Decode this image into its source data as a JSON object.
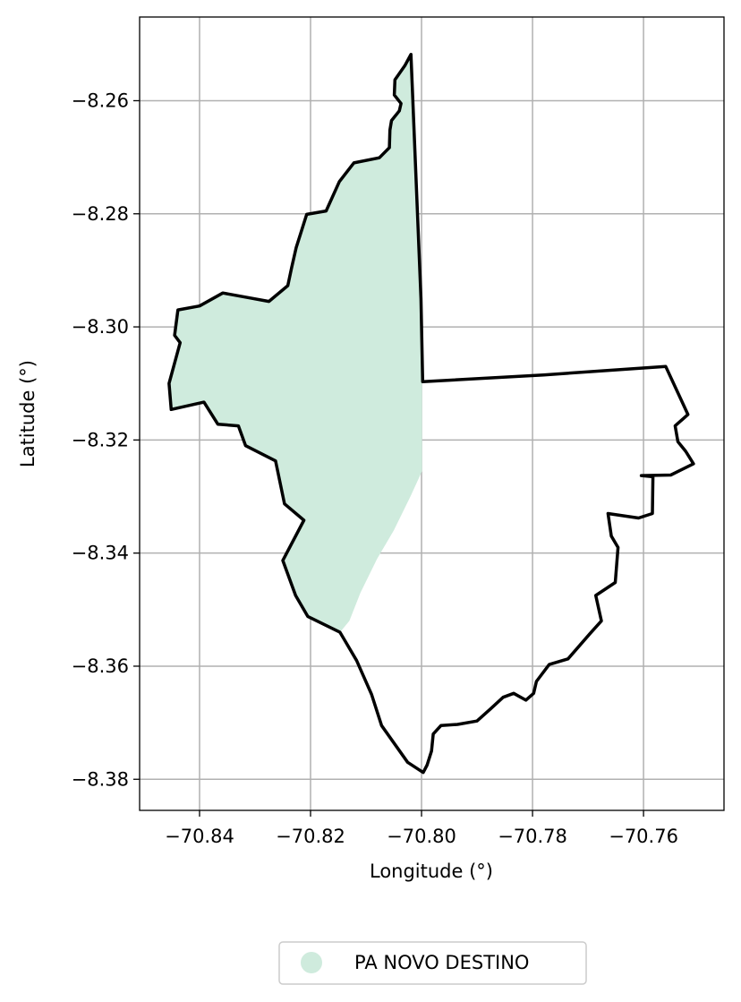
{
  "chart_data": {
    "type": "map",
    "xlabel": "Longitude (°)",
    "ylabel": "Latitude (°)",
    "xlim": [
      -70.8508,
      -70.7455
    ],
    "ylim": [
      -8.3855,
      -8.2452
    ],
    "grid": true,
    "x_ticks": [
      {
        "value": -70.84,
        "label": "−70.84"
      },
      {
        "value": -70.82,
        "label": "−70.82"
      },
      {
        "value": -70.8,
        "label": "−70.80"
      },
      {
        "value": -70.78,
        "label": "−70.78"
      },
      {
        "value": -70.76,
        "label": "−70.76"
      }
    ],
    "y_ticks": [
      {
        "value": -8.26,
        "label": "−8.26"
      },
      {
        "value": -8.28,
        "label": "−8.28"
      },
      {
        "value": -8.3,
        "label": "−8.30"
      },
      {
        "value": -8.32,
        "label": "−8.32"
      },
      {
        "value": -8.34,
        "label": "−8.34"
      },
      {
        "value": -8.36,
        "label": "−8.36"
      },
      {
        "value": -8.38,
        "label": "−8.38"
      }
    ],
    "legend": {
      "placement": "bottom-center",
      "items": [
        {
          "label": "PA NOVO DESTINO",
          "color": "#cfebdd"
        }
      ]
    },
    "fill_color": "#cfebdd",
    "outline_color": "#000000",
    "boundary": [
      [
        -70.8019,
        -8.2518
      ],
      [
        -70.803,
        -8.2538
      ],
      [
        -70.8048,
        -8.2563
      ],
      [
        -70.8049,
        -8.259
      ],
      [
        -70.8037,
        -8.2605
      ],
      [
        -70.804,
        -8.2618
      ],
      [
        -70.8054,
        -8.2635
      ],
      [
        -70.8057,
        -8.2652
      ],
      [
        -70.8058,
        -8.2683
      ],
      [
        -70.8076,
        -8.2701
      ],
      [
        -70.8122,
        -8.271
      ],
      [
        -70.8148,
        -8.2743
      ],
      [
        -70.8172,
        -8.2795
      ],
      [
        -70.8207,
        -8.2801
      ],
      [
        -70.8226,
        -8.286
      ],
      [
        -70.8234,
        -8.2895
      ],
      [
        -70.8241,
        -8.2927
      ],
      [
        -70.8275,
        -8.2955
      ],
      [
        -70.8314,
        -8.2948
      ],
      [
        -70.8358,
        -8.294
      ],
      [
        -70.84,
        -8.2963
      ],
      [
        -70.8439,
        -8.297
      ],
      [
        -70.8445,
        -8.3015
      ],
      [
        -70.8435,
        -8.3028
      ],
      [
        -70.8455,
        -8.31
      ],
      [
        -70.8451,
        -8.3146
      ],
      [
        -70.8392,
        -8.3133
      ],
      [
        -70.8367,
        -8.3172
      ],
      [
        -70.833,
        -8.3175
      ],
      [
        -70.8317,
        -8.321
      ],
      [
        -70.8263,
        -8.3237
      ],
      [
        -70.8247,
        -8.3313
      ],
      [
        -70.8212,
        -8.3342
      ],
      [
        -70.825,
        -8.3413
      ],
      [
        -70.8227,
        -8.3475
      ],
      [
        -70.8205,
        -8.3512
      ],
      [
        -70.8147,
        -8.354
      ],
      [
        -70.8117,
        -8.359
      ],
      [
        -70.809,
        -8.365
      ],
      [
        -70.8072,
        -8.3705
      ],
      [
        -70.8025,
        -8.377
      ],
      [
        -70.7997,
        -8.3788
      ],
      [
        -70.799,
        -8.3775
      ],
      [
        -70.7982,
        -8.375
      ],
      [
        -70.7979,
        -8.372
      ],
      [
        -70.7965,
        -8.3705
      ],
      [
        -70.7935,
        -8.3703
      ],
      [
        -70.79,
        -8.3697
      ],
      [
        -70.7875,
        -8.3675
      ],
      [
        -70.7853,
        -8.3655
      ],
      [
        -70.7834,
        -8.3648
      ],
      [
        -70.7812,
        -8.366
      ],
      [
        -70.7798,
        -8.3648
      ],
      [
        -70.7793,
        -8.3627
      ],
      [
        -70.777,
        -8.3597
      ],
      [
        -70.7736,
        -8.3587
      ],
      [
        -70.7696,
        -8.3542
      ],
      [
        -70.7676,
        -8.352
      ],
      [
        -70.7686,
        -8.3475
      ],
      [
        -70.7651,
        -8.3452
      ],
      [
        -70.7646,
        -8.339
      ],
      [
        -70.7658,
        -8.337
      ],
      [
        -70.7664,
        -8.333
      ],
      [
        -70.7609,
        -8.3338
      ],
      [
        -70.7584,
        -8.333
      ],
      [
        -70.7583,
        -8.3265
      ],
      [
        -70.7604,
        -8.3263
      ],
      [
        -70.7551,
        -8.3262
      ],
      [
        -70.751,
        -8.3242
      ],
      [
        -70.7524,
        -8.322
      ],
      [
        -70.7538,
        -8.3203
      ],
      [
        -70.7543,
        -8.3175
      ],
      [
        -70.752,
        -8.3155
      ],
      [
        -70.756,
        -8.307
      ],
      [
        -70.778,
        -8.3085
      ],
      [
        -70.7998,
        -8.3097
      ],
      [
        -70.8001,
        -8.295
      ],
      [
        -70.8019,
        -8.2518
      ]
    ],
    "highlight": [
      [
        -70.8019,
        -8.2518
      ],
      [
        -70.803,
        -8.2538
      ],
      [
        -70.8048,
        -8.2563
      ],
      [
        -70.8049,
        -8.259
      ],
      [
        -70.8037,
        -8.2605
      ],
      [
        -70.804,
        -8.2618
      ],
      [
        -70.8054,
        -8.2635
      ],
      [
        -70.8057,
        -8.2652
      ],
      [
        -70.8058,
        -8.2683
      ],
      [
        -70.8076,
        -8.2701
      ],
      [
        -70.8122,
        -8.271
      ],
      [
        -70.8148,
        -8.2743
      ],
      [
        -70.8172,
        -8.2795
      ],
      [
        -70.8207,
        -8.2801
      ],
      [
        -70.8226,
        -8.286
      ],
      [
        -70.8234,
        -8.2895
      ],
      [
        -70.8241,
        -8.2927
      ],
      [
        -70.8275,
        -8.2955
      ],
      [
        -70.8314,
        -8.2948
      ],
      [
        -70.8358,
        -8.294
      ],
      [
        -70.84,
        -8.2963
      ],
      [
        -70.8439,
        -8.297
      ],
      [
        -70.8445,
        -8.3015
      ],
      [
        -70.8435,
        -8.3028
      ],
      [
        -70.8455,
        -8.31
      ],
      [
        -70.8451,
        -8.3146
      ],
      [
        -70.8392,
        -8.3133
      ],
      [
        -70.8367,
        -8.3172
      ],
      [
        -70.833,
        -8.3175
      ],
      [
        -70.8317,
        -8.321
      ],
      [
        -70.8263,
        -8.3237
      ],
      [
        -70.8247,
        -8.3313
      ],
      [
        -70.8212,
        -8.3342
      ],
      [
        -70.825,
        -8.3413
      ],
      [
        -70.8227,
        -8.3475
      ],
      [
        -70.8205,
        -8.3512
      ],
      [
        -70.8147,
        -8.354
      ],
      [
        -70.813,
        -8.352
      ],
      [
        -70.811,
        -8.347
      ],
      [
        -70.808,
        -8.341
      ],
      [
        -70.805,
        -8.336
      ],
      [
        -70.802,
        -8.33
      ],
      [
        -70.7999,
        -8.3255
      ],
      [
        -70.7999,
        -8.3
      ],
      [
        -70.8003,
        -8.295
      ],
      [
        -70.8019,
        -8.2518
      ]
    ]
  }
}
